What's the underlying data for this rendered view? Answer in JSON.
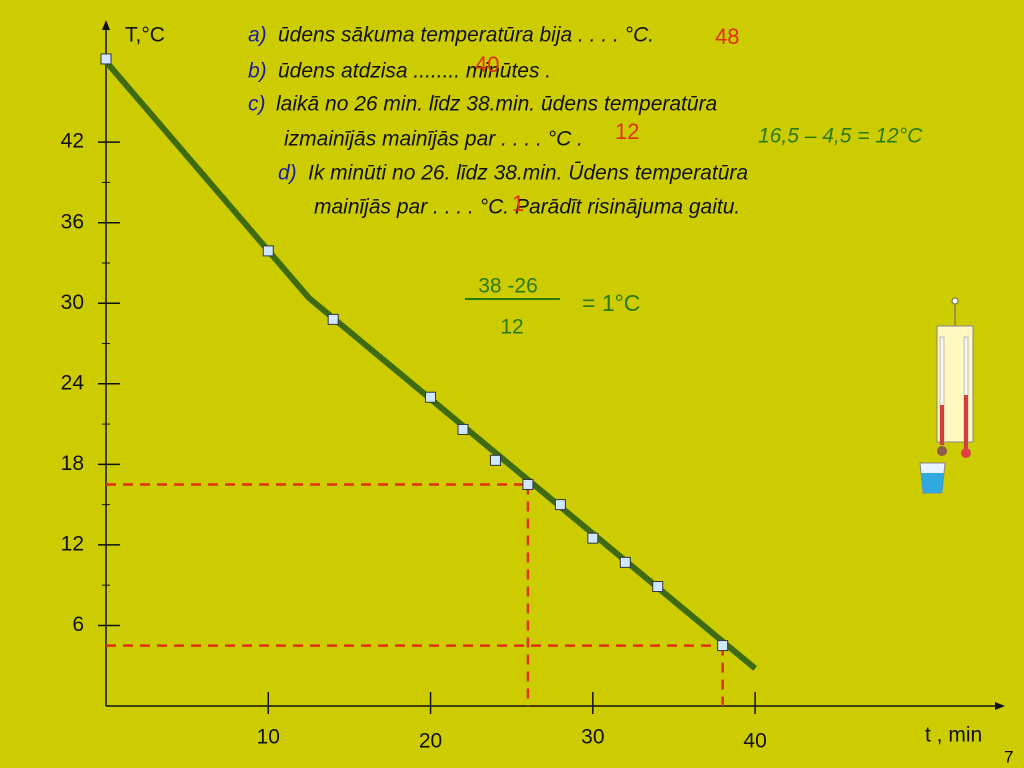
{
  "chart_data": {
    "type": "line",
    "x_label": "t , min",
    "y_label": "T,°C",
    "xlim": [
      0,
      55.4
    ],
    "ylim": [
      0,
      51.1
    ],
    "xticks": [
      10,
      20,
      30,
      40
    ],
    "yticks": [
      6,
      12,
      18,
      24,
      30,
      36,
      42
    ],
    "series": [
      {
        "color": "#3f6b10",
        "x": [
          0,
          12.5,
          40
        ],
        "values": [
          48,
          30.4,
          2.8
        ]
      },
      {
        "color": "#cfe8ff",
        "x": [
          0,
          10,
          14,
          20,
          22,
          24,
          26,
          28,
          30,
          32,
          34,
          38
        ],
        "values": [
          48.2,
          33.9,
          28.8,
          23,
          20.6,
          18.3,
          16.5,
          15,
          12.5,
          10.7,
          8.9,
          4.5
        ]
      }
    ],
    "guides": [
      {
        "x": 26,
        "y": 16.5
      },
      {
        "x": 38,
        "y": 4.5
      }
    ],
    "guide_color": "#e03010",
    "questions": {
      "a": {
        "prefix": "a)",
        "lines": [
          "ūdens sākuma temperatūra bija .  . . . °C."
        ],
        "answer": "48"
      },
      "b": {
        "prefix": "b)",
        "lines": [
          "ūdens atdzisa  ........   minūtes ."
        ],
        "answer": "40"
      },
      "c": {
        "prefix": "c)",
        "lines": [
          "laikā no 26 min. līdz 38.min. ūdens temperatūra",
          "izmainījās mainījās par    . . . .    °C ."
        ],
        "answer": "12",
        "calculation": "16,5 – 4,5 = 12°C"
      },
      "d": {
        "prefix": "d)",
        "lines": [
          "Ik minūti no 26. līdz 38.min. Ūdens temperatūra",
          "mainījās par  . . . .   °C.  Parādīt risinājuma gaitu."
        ],
        "answer": "1"
      }
    },
    "fraction": {
      "numerator": "38 -26",
      "denominator": "12",
      "result": "= 1°C"
    },
    "slide_number": "7"
  }
}
